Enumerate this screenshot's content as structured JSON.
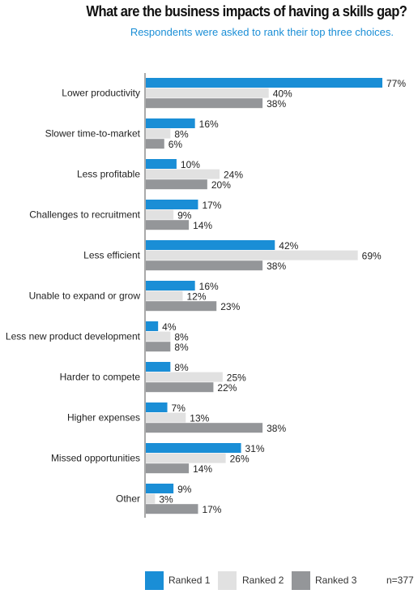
{
  "chart_data": {
    "type": "bar",
    "orientation": "horizontal",
    "title": "What are the business impacts of having a skills gap?",
    "subtitle": "Respondents were asked to rank their top three choices.",
    "categories": [
      "Lower productivity",
      "Slower time-to-market",
      "Less profitable",
      "Challenges to recruitment",
      "Less efficient",
      "Unable to expand or grow",
      "Less new product development",
      "Harder to compete",
      "Higher expenses",
      "Missed opportunities",
      "Other"
    ],
    "series": [
      {
        "name": "Ranked 1",
        "color": "#1a8ed6",
        "values": [
          77,
          16,
          10,
          17,
          42,
          16,
          4,
          8,
          7,
          31,
          9
        ]
      },
      {
        "name": "Ranked 2",
        "color": "#e1e1e1",
        "values": [
          40,
          8,
          24,
          9,
          69,
          12,
          8,
          25,
          13,
          26,
          3
        ]
      },
      {
        "name": "Ranked 3",
        "color": "#949699",
        "values": [
          38,
          6,
          20,
          14,
          38,
          23,
          8,
          22,
          38,
          14,
          17
        ]
      }
    ],
    "value_suffix": "%",
    "xlim": [
      0,
      77
    ],
    "grid": false,
    "legend_position": "bottom",
    "note": "n=377"
  }
}
